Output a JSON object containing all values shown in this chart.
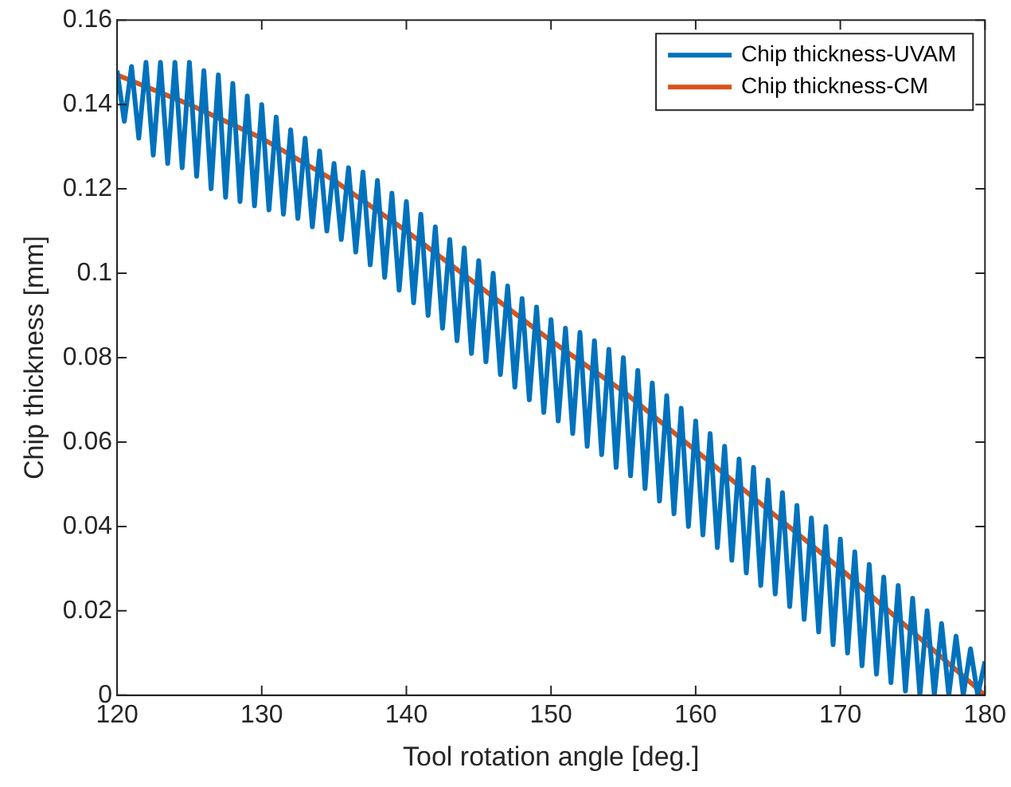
{
  "chart_data": {
    "type": "line",
    "xlabel": "Tool rotation angle [deg.]",
    "ylabel": "Chip thickness [mm]",
    "xlim": [
      120,
      180
    ],
    "xticks": [
      120,
      130,
      140,
      150,
      160,
      170,
      180
    ],
    "ylim": [
      0,
      0.16
    ],
    "yticks": [
      0,
      0.02,
      0.04,
      0.06,
      0.08,
      0.1,
      0.12,
      0.14,
      0.16
    ],
    "grid": false,
    "legend": "top right",
    "marker": "none",
    "line_style": "solid",
    "series": [
      {
        "name": "Chip thickness-UVAM",
        "color": "#0072bd",
        "x": [
          120,
          120.5,
          121,
          121.5,
          122,
          122.5,
          123,
          123.5,
          124,
          124.5,
          125,
          125.5,
          126,
          126.5,
          127,
          127.5,
          128,
          128.5,
          129,
          129.5,
          130,
          130.5,
          131,
          131.5,
          132,
          132.5,
          133,
          133.5,
          134,
          134.5,
          135,
          135.5,
          136,
          136.5,
          137,
          137.5,
          138,
          138.5,
          139,
          139.5,
          140,
          140.5,
          141,
          141.5,
          142,
          142.5,
          143,
          143.5,
          144,
          144.5,
          145,
          145.5,
          146,
          146.5,
          147,
          147.5,
          148,
          148.5,
          149,
          149.5,
          150,
          150.5,
          151,
          151.5,
          152,
          152.5,
          153,
          153.5,
          154,
          154.5,
          155,
          155.5,
          156,
          156.5,
          157,
          157.5,
          158,
          158.5,
          159,
          159.5,
          160,
          160.5,
          161,
          161.5,
          162,
          162.5,
          163,
          163.5,
          164,
          164.5,
          165,
          165.5,
          166,
          166.5,
          167,
          167.5,
          168,
          168.5,
          169,
          169.5,
          170,
          170.5,
          171,
          171.5,
          172,
          172.5,
          173,
          173.5,
          174,
          174.5,
          175,
          175.5,
          176,
          176.5,
          177,
          177.5,
          178,
          178.5,
          179,
          179.5,
          180
        ],
        "values": [
          0.148,
          0.136,
          0.149,
          0.132,
          0.15,
          0.128,
          0.15,
          0.126,
          0.15,
          0.125,
          0.15,
          0.123,
          0.148,
          0.12,
          0.147,
          0.118,
          0.145,
          0.117,
          0.142,
          0.116,
          0.14,
          0.115,
          0.137,
          0.114,
          0.134,
          0.113,
          0.132,
          0.111,
          0.129,
          0.11,
          0.126,
          0.108,
          0.125,
          0.105,
          0.124,
          0.102,
          0.122,
          0.099,
          0.119,
          0.096,
          0.117,
          0.093,
          0.114,
          0.09,
          0.111,
          0.087,
          0.108,
          0.084,
          0.106,
          0.081,
          0.103,
          0.079,
          0.1,
          0.076,
          0.097,
          0.073,
          0.094,
          0.07,
          0.092,
          0.067,
          0.089,
          0.065,
          0.087,
          0.062,
          0.086,
          0.059,
          0.084,
          0.057,
          0.082,
          0.054,
          0.08,
          0.052,
          0.077,
          0.049,
          0.074,
          0.046,
          0.071,
          0.043,
          0.068,
          0.04,
          0.065,
          0.038,
          0.062,
          0.035,
          0.059,
          0.032,
          0.056,
          0.029,
          0.054,
          0.026,
          0.051,
          0.024,
          0.048,
          0.021,
          0.045,
          0.018,
          0.042,
          0.015,
          0.04,
          0.012,
          0.037,
          0.01,
          0.034,
          0.007,
          0.031,
          0.005,
          0.028,
          0.003,
          0.026,
          0.001,
          0.023,
          0,
          0.02,
          0,
          0.017,
          0,
          0.014,
          0,
          0.011,
          0,
          0.008
        ]
      },
      {
        "name": "Chip thickness-CM",
        "color": "#d95319",
        "x": [
          120,
          125,
          130,
          135,
          140,
          145,
          150,
          155,
          160,
          165,
          170,
          175,
          180
        ],
        "values": [
          0.147,
          0.14,
          0.132,
          0.122,
          0.11,
          0.097,
          0.084,
          0.072,
          0.058,
          0.044,
          0.03,
          0.015,
          0
        ]
      }
    ]
  }
}
